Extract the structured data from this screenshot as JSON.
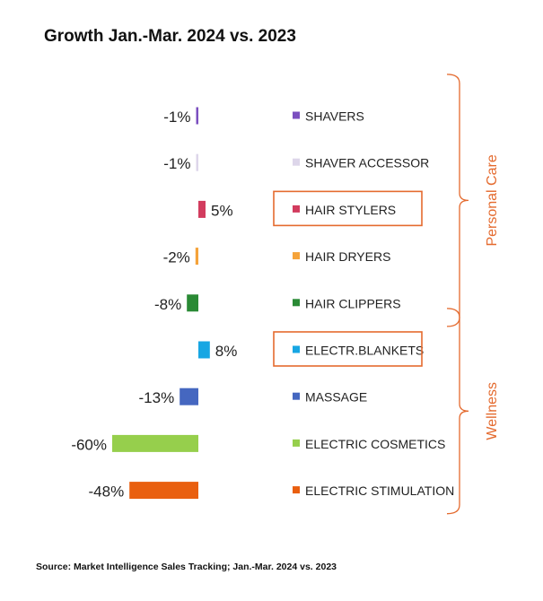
{
  "title": "Growth Jan.-Mar. 2024 vs. 2023",
  "source": "Source: Market Intelligence Sales Tracking; Jan.-Mar. 2024 vs. 2023",
  "chart_data": {
    "type": "bar",
    "orientation": "horizontal",
    "title": "Growth Jan.-Mar. 2024 vs. 2023",
    "categories": [
      "SHAVERS",
      "SHAVER ACCESSOR",
      "HAIR STYLERS",
      "HAIR DRYERS",
      "HAIR CLIPPERS",
      "ELECTR.BLANKETS",
      "MASSAGE",
      "ELECTRIC COSMETICS",
      "ELECTRIC STIMULATION"
    ],
    "values": [
      -1,
      -1,
      5,
      -2,
      -8,
      8,
      -13,
      -60,
      -48
    ],
    "value_labels": [
      "-1%",
      "-1%",
      "5%",
      "-2%",
      "-8%",
      "8%",
      "-13%",
      "-60%",
      "-48%"
    ],
    "colors": [
      "#7b4fbf",
      "#ddd6ea",
      "#d23c5e",
      "#f5a33a",
      "#2a8a35",
      "#17a6e3",
      "#4567c0",
      "#96cf4c",
      "#e95f0f"
    ],
    "highlighted": [
      "HAIR STYLERS",
      "ELECTR.BLANKETS"
    ],
    "groups": [
      {
        "name": "Personal Care",
        "categories": [
          "SHAVERS",
          "SHAVER ACCESSOR",
          "HAIR STYLERS",
          "HAIR DRYERS",
          "HAIR CLIPPERS"
        ]
      },
      {
        "name": "Wellness",
        "categories": [
          "ELECTR.BLANKETS",
          "MASSAGE",
          "ELECTRIC COSMETICS",
          "ELECTRIC STIMULATION"
        ]
      }
    ],
    "accent_color": "#e46a2e",
    "grid": false
  }
}
